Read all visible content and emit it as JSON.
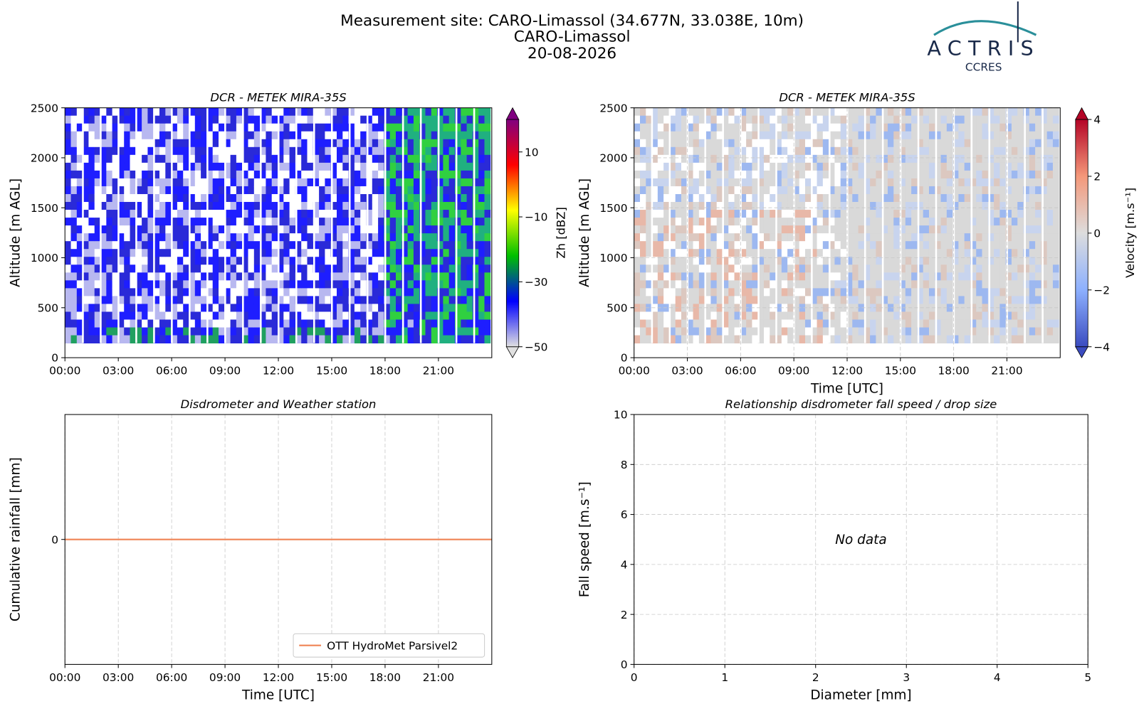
{
  "header": {
    "lines": [
      "Measurement site: CARO-Limassol (34.677N, 33.038E, 10m)",
      "CARO-Limassol",
      "20-08-2026"
    ],
    "logo_text": "ACTRIS",
    "logo_subtext": "CCRES"
  },
  "chart_data": [
    {
      "type": "heatmap",
      "title": "DCR - METEK MIRA-35S",
      "ylabel": "Altitude [m AGL]",
      "xlim": [
        0,
        24
      ],
      "xticks": [
        {
          "value": 0,
          "label": "00:00"
        },
        {
          "value": 3,
          "label": "03:00"
        },
        {
          "value": 6,
          "label": "06:00"
        },
        {
          "value": 9,
          "label": "09:00"
        },
        {
          "value": 12,
          "label": "12:00"
        },
        {
          "value": 15,
          "label": "15:00"
        },
        {
          "value": 18,
          "label": "18:00"
        },
        {
          "value": 21,
          "label": "21:00"
        }
      ],
      "ylim": [
        0,
        2500
      ],
      "yticks": [
        0,
        500,
        1000,
        1500,
        2000,
        2500
      ],
      "grid": false,
      "colorbar": {
        "label": "Zh [dBZ]",
        "lim": [
          -50,
          20
        ],
        "ticks": [
          {
            "value": -50,
            "label": "−50"
          },
          {
            "value": -30,
            "label": "−30"
          },
          {
            "value": -10,
            "label": "−10"
          },
          10
        ],
        "colors": [
          "#e0e0e0",
          "#0000ff",
          "#00c000",
          "#ffff00",
          "#ff0000",
          "#800080"
        ]
      }
    },
    {
      "type": "heatmap",
      "title": "DCR - METEK MIRA-35S",
      "xlabel": "Time [UTC]",
      "ylabel": "Altitude [m AGL]",
      "xlim": [
        0,
        24
      ],
      "xticks": [
        {
          "value": 0,
          "label": "00:00"
        },
        {
          "value": 3,
          "label": "03:00"
        },
        {
          "value": 6,
          "label": "06:00"
        },
        {
          "value": 9,
          "label": "09:00"
        },
        {
          "value": 12,
          "label": "12:00"
        },
        {
          "value": 15,
          "label": "15:00"
        },
        {
          "value": 18,
          "label": "18:00"
        },
        {
          "value": 21,
          "label": "21:00"
        }
      ],
      "ylim": [
        0,
        2500
      ],
      "yticks": [
        0,
        500,
        1000,
        1500,
        2000,
        2500
      ],
      "grid": true,
      "colorbar": {
        "label": "Velocity [m.s⁻¹]",
        "lim": [
          -4,
          4
        ],
        "ticks": [
          {
            "value": -4,
            "label": "−4"
          },
          {
            "value": -2,
            "label": "−2"
          },
          0,
          2,
          4
        ],
        "colors": [
          "#3b4cc0",
          "#8db0fe",
          "#dddddd",
          "#f4987a",
          "#b40426"
        ]
      }
    },
    {
      "type": "line",
      "title": "Disdrometer and Weather station",
      "xlabel": "Time [UTC]",
      "ylabel": "Cumulative rainfall [mm]",
      "xlim": [
        0,
        24
      ],
      "xticks": [
        {
          "value": 0,
          "label": "00:00"
        },
        {
          "value": 3,
          "label": "03:00"
        },
        {
          "value": 6,
          "label": "06:00"
        },
        {
          "value": 9,
          "label": "09:00"
        },
        {
          "value": 12,
          "label": "12:00"
        },
        {
          "value": 15,
          "label": "15:00"
        },
        {
          "value": 18,
          "label": "18:00"
        },
        {
          "value": 21,
          "label": "21:00"
        }
      ],
      "ylim": [
        -0.055,
        0.055
      ],
      "yticks": [
        0
      ],
      "grid": true,
      "legend": "lower right",
      "x": [
        0,
        24
      ],
      "series": [
        {
          "name": "OTT HydroMet Parsivel2",
          "color": "#f08a5d",
          "values": [
            0,
            0
          ]
        }
      ]
    },
    {
      "type": "scatter",
      "title": "Relationship disdrometer fall speed / drop size",
      "xlabel": "Diameter [mm]",
      "ylabel": "Fall speed [m.s⁻¹]",
      "xlim": [
        0,
        5
      ],
      "xticks": [
        0,
        1,
        2,
        3,
        4,
        5
      ],
      "ylim": [
        0,
        10
      ],
      "yticks": [
        0,
        2,
        4,
        6,
        8,
        10
      ],
      "grid": true,
      "annotation": "No data"
    }
  ]
}
